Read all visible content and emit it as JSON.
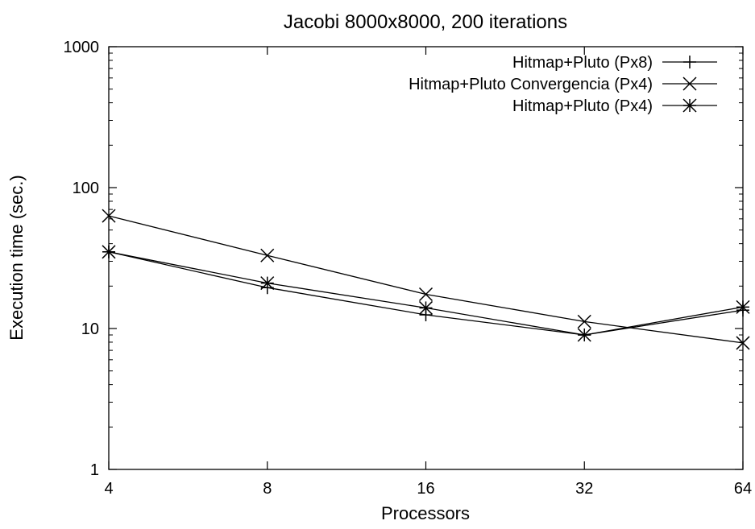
{
  "chart_data": {
    "type": "line",
    "title": "Jacobi 8000x8000, 200 iterations",
    "xlabel": "Processors",
    "ylabel": "Execution time (sec.)",
    "x_scale": "log2",
    "y_scale": "log10",
    "xlim": [
      4,
      64
    ],
    "ylim": [
      1,
      1000
    ],
    "x_ticks": [
      4,
      8,
      16,
      32,
      64
    ],
    "x_tick_labels": [
      "4",
      "8",
      "16",
      "32",
      "64"
    ],
    "y_ticks": [
      1,
      10,
      100,
      1000
    ],
    "y_tick_labels": [
      "1",
      "10",
      "100",
      "1000"
    ],
    "grid": false,
    "legend_position": "top-right",
    "series": [
      {
        "name": "Hitmap+Pluto (Px8)",
        "marker": "plus",
        "x": [
          4,
          8,
          16,
          32,
          64
        ],
        "values": [
          35,
          19.5,
          12.5,
          9.0,
          13.5
        ]
      },
      {
        "name": "Hitmap+Pluto Convergencia (Px4)",
        "marker": "cross",
        "x": [
          4,
          8,
          16,
          32,
          64
        ],
        "values": [
          63,
          33,
          17.5,
          11.2,
          7.9
        ]
      },
      {
        "name": "Hitmap+Pluto (Px4)",
        "marker": "star",
        "x": [
          4,
          8,
          16,
          32,
          64
        ],
        "values": [
          35,
          21,
          14,
          9.0,
          14.2
        ]
      }
    ],
    "colors": {
      "line": "#000000",
      "axis": "#000000",
      "background": "#ffffff"
    }
  }
}
